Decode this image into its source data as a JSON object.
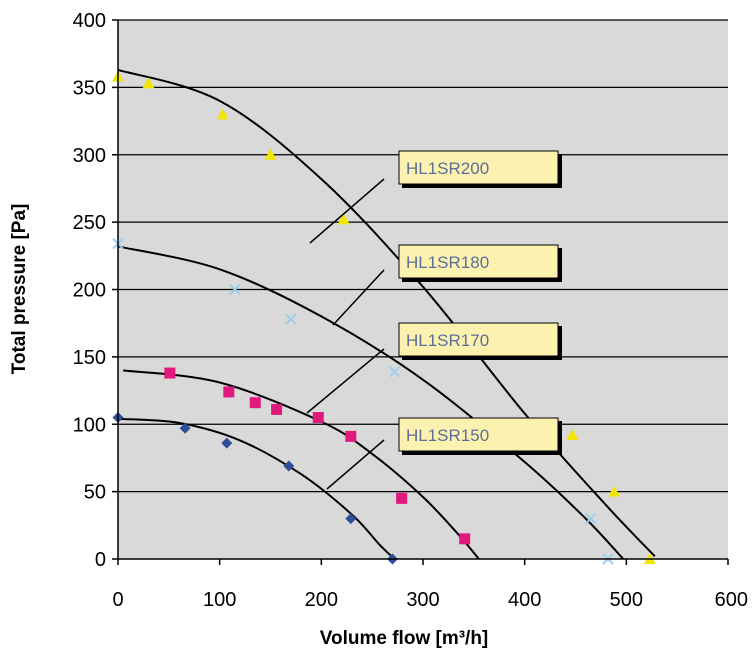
{
  "chart_data": {
    "type": "scatter",
    "title": "",
    "xlabel": "Volume flow [m³/h]",
    "ylabel": "Total pressure [Pa]",
    "xlim": [
      0,
      600
    ],
    "ylim": [
      0,
      400
    ],
    "x_ticks": [
      "0",
      "100",
      "200",
      "300",
      "400",
      "500",
      "600"
    ],
    "y_ticks": [
      "0",
      "50",
      "100",
      "150",
      "200",
      "250",
      "300",
      "350",
      "400"
    ],
    "grid": "horizontal",
    "legend": "callout labels",
    "background_color": "#d9d9d9",
    "series": [
      {
        "name": "HL1SR200",
        "marker": "triangle",
        "color": "#f2e600",
        "points": [
          [
            0,
            358
          ],
          [
            30,
            353
          ],
          [
            103,
            330
          ],
          [
            150,
            300
          ],
          [
            222,
            252
          ],
          [
            447,
            92
          ],
          [
            488,
            50
          ],
          [
            523,
            0
          ]
        ],
        "curve": [
          [
            0,
            363
          ],
          [
            100,
            340
          ],
          [
            200,
            282
          ],
          [
            300,
            202
          ],
          [
            400,
            108
          ],
          [
            480,
            40
          ],
          [
            528,
            2
          ]
        ]
      },
      {
        "name": "HL1SR180",
        "marker": "x",
        "color": "#9ccfee",
        "points": [
          [
            0,
            234
          ],
          [
            115,
            200
          ],
          [
            170,
            178
          ],
          [
            272,
            139
          ],
          [
            465,
            30
          ],
          [
            482,
            0
          ]
        ],
        "curve": [
          [
            0,
            232
          ],
          [
            100,
            215
          ],
          [
            200,
            180
          ],
          [
            300,
            133
          ],
          [
            400,
            72
          ],
          [
            460,
            30
          ],
          [
            497,
            0
          ]
        ]
      },
      {
        "name": "HL1SR170",
        "marker": "square",
        "color": "#e0197d",
        "points": [
          [
            51,
            138
          ],
          [
            109,
            124
          ],
          [
            135,
            116
          ],
          [
            156,
            111
          ],
          [
            197,
            105
          ],
          [
            229,
            91
          ],
          [
            279,
            45
          ],
          [
            341,
            15
          ]
        ],
        "curve": [
          [
            5,
            140
          ],
          [
            100,
            131
          ],
          [
            200,
            102
          ],
          [
            250,
            78
          ],
          [
            300,
            46
          ],
          [
            335,
            18
          ],
          [
            355,
            0
          ]
        ]
      },
      {
        "name": "HL1SR150",
        "marker": "diamond",
        "color": "#2e4f95",
        "points": [
          [
            0,
            105
          ],
          [
            66,
            97
          ],
          [
            107,
            86
          ],
          [
            168,
            69
          ],
          [
            229,
            30
          ],
          [
            270,
            0
          ]
        ],
        "curve": [
          [
            0,
            104
          ],
          [
            60,
            101
          ],
          [
            120,
            88
          ],
          [
            180,
            63
          ],
          [
            230,
            33
          ],
          [
            258,
            10
          ],
          [
            272,
            0
          ]
        ]
      }
    ],
    "annotations": [
      "HL1SR200",
      "HL1SR180",
      "HL1SR170",
      "HL1SR150"
    ]
  }
}
